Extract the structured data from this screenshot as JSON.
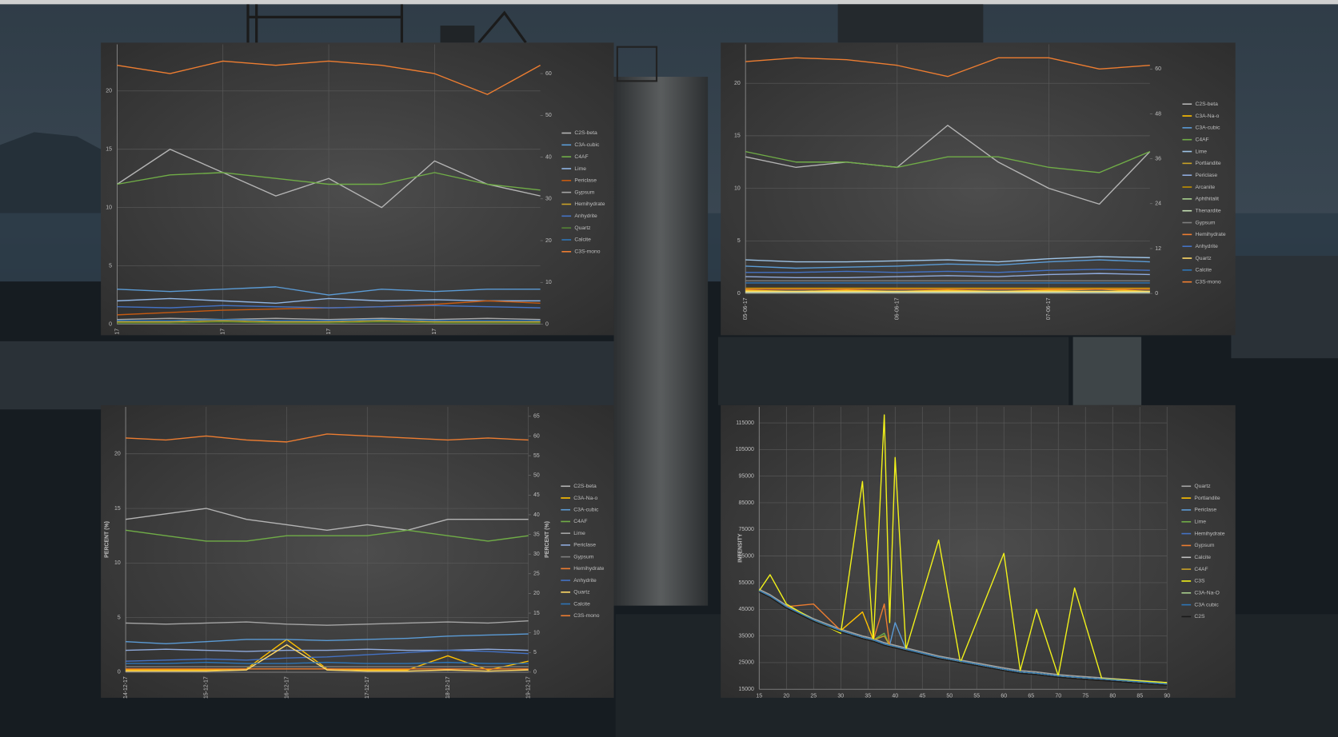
{
  "chart_data": [
    {
      "type": "line",
      "categories": [
        "17",
        null,
        "17",
        null,
        "17",
        null,
        "17",
        null,
        null
      ],
      "ylim": [
        0,
        24
      ],
      "yticks": [
        0,
        5,
        10,
        15,
        20
      ],
      "y2lim": [
        0,
        67
      ],
      "y2ticks": [
        0,
        10,
        20,
        30,
        40,
        50,
        60
      ],
      "grid": true,
      "series": [
        {
          "name": "C2S-beta",
          "color": "#b4b4b4",
          "values": [
            12,
            15,
            13,
            11,
            12.5,
            10,
            14,
            12,
            11
          ]
        },
        {
          "name": "C3A-cubic",
          "color": "#5b9bd5",
          "values": [
            3,
            2.8,
            3,
            3.2,
            2.5,
            3,
            2.8,
            3,
            3
          ]
        },
        {
          "name": "C4AF",
          "color": "#70ad47",
          "values": [
            12,
            12.8,
            13,
            12.5,
            12,
            12,
            13,
            12,
            11.5
          ]
        },
        {
          "name": "Lime",
          "color": "#8fb4e3",
          "values": [
            2,
            2.2,
            2,
            1.8,
            2.2,
            2,
            2.1,
            2,
            2
          ]
        },
        {
          "name": "Periclase",
          "color": "#c55a11",
          "values": [
            0.8,
            1,
            1.2,
            1.3,
            1.4,
            1.5,
            1.7,
            2,
            1.8
          ]
        },
        {
          "name": "Gypsum",
          "color": "#a5a5a5",
          "values": [
            0.4,
            0.5,
            0.4,
            0.5,
            0.4,
            0.5,
            0.4,
            0.5,
            0.4
          ]
        },
        {
          "name": "Hemihydrate",
          "color": "#c9a227",
          "values": [
            0.2,
            0.2,
            0.3,
            0.2,
            0.2,
            0.3,
            0.2,
            0.2,
            0.2
          ]
        },
        {
          "name": "Anhydrite",
          "color": "#4472c4",
          "values": [
            1.5,
            1.4,
            1.6,
            1.5,
            1.4,
            1.5,
            1.6,
            1.5,
            1.4
          ]
        },
        {
          "name": "Quartz",
          "color": "#548235",
          "values": [
            0.1,
            0.1,
            0.2,
            0.1,
            0.1,
            0.2,
            0.1,
            0.1,
            0.1
          ]
        },
        {
          "name": "Calcite",
          "color": "#2e75b6",
          "values": [
            0.3,
            0.3,
            0.4,
            0.3,
            0.3,
            0.4,
            0.3,
            0.3,
            0.3
          ]
        },
        {
          "name": "C3S-mono",
          "color": "#ed7d31",
          "axis": "y2",
          "values": [
            62,
            60,
            63,
            62,
            63,
            62,
            60,
            55,
            62
          ]
        }
      ]
    },
    {
      "type": "line",
      "categories": [
        "05-06-17",
        null,
        null,
        "06-06-17",
        null,
        null,
        "07-06-17",
        null,
        null
      ],
      "ylim": [
        0,
        23.7
      ],
      "yticks": [
        0,
        5,
        10,
        15,
        20
      ],
      "y2lim": [
        0,
        66.6
      ],
      "y2ticks": [
        0,
        12,
        24,
        36,
        48,
        60
      ],
      "grid": true,
      "series": [
        {
          "name": "C2S-beta",
          "color": "#b4b4b4",
          "values": [
            13,
            12,
            12.5,
            12,
            16,
            12.5,
            10,
            8.5,
            13.5
          ]
        },
        {
          "name": "C3A-Na-o",
          "color": "#ffc000",
          "values": [
            0.3,
            0.2,
            0.3,
            0.2,
            0.3,
            0.2,
            0.3,
            0.4,
            0.2
          ]
        },
        {
          "name": "C3A-cubic",
          "color": "#5b9bd5",
          "values": [
            2.6,
            2.4,
            2.5,
            2.6,
            2.8,
            2.7,
            3,
            3.2,
            3
          ]
        },
        {
          "name": "C4AF",
          "color": "#70ad47",
          "values": [
            13.5,
            12.5,
            12.5,
            12,
            13,
            13,
            12,
            11.5,
            13.5
          ]
        },
        {
          "name": "Lime",
          "color": "#9dc3e6",
          "values": [
            3.2,
            3,
            3,
            3.1,
            3.2,
            3,
            3.3,
            3.5,
            3.4
          ]
        },
        {
          "name": "Portlandite",
          "color": "#c9a227",
          "values": [
            0.1,
            0.1,
            0.1,
            0.1,
            0.1,
            0.1,
            0.1,
            0.1,
            0.1
          ]
        },
        {
          "name": "Periclase",
          "color": "#8faadc",
          "values": [
            1.6,
            1.5,
            1.5,
            1.6,
            1.7,
            1.6,
            1.8,
            1.9,
            1.8
          ]
        },
        {
          "name": "Arcanite",
          "color": "#bf9000",
          "values": [
            0.5,
            0.5,
            0.5,
            0.5,
            0.5,
            0.5,
            0.5,
            0.5,
            0.5
          ]
        },
        {
          "name": "Aphthitalit",
          "color": "#a9d18e",
          "values": [
            0.2,
            0.2,
            0.2,
            0.2,
            0.2,
            0.2,
            0.2,
            0.2,
            0.2
          ]
        },
        {
          "name": "Thenardite",
          "color": "#c5e0b4",
          "values": [
            0.1,
            0.1,
            0.1,
            0.1,
            0.1,
            0.1,
            0.1,
            0.1,
            0.1
          ]
        },
        {
          "name": "Gypsum",
          "color": "#7f7f7f",
          "values": [
            1.2,
            1.2,
            1.2,
            1.2,
            1.2,
            1.2,
            1.2,
            1.2,
            1.2
          ]
        },
        {
          "name": "Hemihydrate",
          "color": "#ed7d31",
          "values": [
            0.4,
            0.4,
            0.4,
            0.4,
            0.4,
            0.4,
            0.4,
            0.4,
            0.4
          ]
        },
        {
          "name": "Anhydrite",
          "color": "#4472c4",
          "values": [
            2,
            2,
            2.1,
            2,
            2.1,
            2,
            2.2,
            2.3,
            2.2
          ]
        },
        {
          "name": "Quartz",
          "color": "#ffd966",
          "values": [
            0.2,
            0.2,
            0.2,
            0.2,
            0.2,
            0.2,
            0.2,
            0.2,
            0.2
          ]
        },
        {
          "name": "Calcite",
          "color": "#2e75b6",
          "values": [
            1,
            1,
            1,
            1,
            1,
            1,
            1,
            1,
            1
          ]
        },
        {
          "name": "C3S-mono",
          "color": "#ed7d31",
          "axis": "y2",
          "values": [
            62,
            63,
            62.5,
            61,
            58,
            63,
            63,
            60,
            61
          ]
        }
      ]
    },
    {
      "type": "line",
      "categories": [
        "14-12-17",
        null,
        "15-12-17",
        null,
        "16-12-17",
        null,
        "17-12-17",
        null,
        "18-12-17",
        null,
        "19-12-17"
      ],
      "ylabel": "PERCENT (%)",
      "y2label": "PERCENT (%)",
      "ylim": [
        0,
        24.3
      ],
      "yticks": [
        0,
        5,
        10,
        15,
        20
      ],
      "y2lim": [
        0,
        67.4
      ],
      "y2ticks": [
        0,
        5,
        10,
        15,
        20,
        25,
        30,
        35,
        40,
        45,
        50,
        55,
        60,
        65
      ],
      "grid": true,
      "series": [
        {
          "name": "C2S-beta",
          "color": "#b4b4b4",
          "values": [
            14,
            14.5,
            15,
            14,
            13.5,
            13,
            13.5,
            13,
            14,
            14,
            14
          ]
        },
        {
          "name": "C3A-Na-o",
          "color": "#ffc000",
          "values": [
            0.2,
            0.2,
            0.2,
            0.3,
            3,
            0.3,
            0.2,
            0.2,
            1.5,
            0.2,
            1
          ]
        },
        {
          "name": "C3A-cubic",
          "color": "#5b9bd5",
          "values": [
            2.8,
            2.6,
            2.8,
            3,
            3,
            2.9,
            3,
            3.1,
            3.3,
            3.4,
            3.5
          ]
        },
        {
          "name": "C4AF",
          "color": "#70ad47",
          "values": [
            13,
            12.5,
            12,
            12,
            12.5,
            12.5,
            12.5,
            13,
            12.5,
            12,
            12.5
          ]
        },
        {
          "name": "Lime",
          "color": "#a5a5a5",
          "values": [
            4.5,
            4.4,
            4.5,
            4.6,
            4.4,
            4.3,
            4.4,
            4.5,
            4.6,
            4.5,
            4.7
          ]
        },
        {
          "name": "Periclase",
          "color": "#8faadc",
          "values": [
            2,
            2.1,
            2,
            1.9,
            2,
            2,
            2.1,
            2,
            2,
            2.1,
            2
          ]
        },
        {
          "name": "Gypsum",
          "color": "#7f7f7f",
          "values": [
            0.5,
            0.5,
            0.5,
            0.5,
            0.5,
            0.5,
            0.5,
            0.5,
            0.5,
            0.5,
            0.5
          ]
        },
        {
          "name": "Hemihydrate",
          "color": "#ed7d31",
          "values": [
            0.3,
            0.3,
            0.3,
            0.3,
            0.3,
            0.3,
            0.3,
            0.3,
            0.3,
            0.3,
            0.3
          ]
        },
        {
          "name": "Anhydrite",
          "color": "#4472c4",
          "values": [
            1,
            1.1,
            1.2,
            1.1,
            1.3,
            1.4,
            1.6,
            1.8,
            2,
            1.9,
            1.7
          ]
        },
        {
          "name": "Quartz",
          "color": "#ffd966",
          "values": [
            0.1,
            0.1,
            0.1,
            0.2,
            2.5,
            0.2,
            0.1,
            0.1,
            0.2,
            0.1,
            0.2
          ]
        },
        {
          "name": "Calcite",
          "color": "#2e75b6",
          "values": [
            0.8,
            0.8,
            0.9,
            0.8,
            0.8,
            0.9,
            0.8,
            0.8,
            0.9,
            0.8,
            0.8
          ]
        },
        {
          "name": "C3S-mono",
          "color": "#ed7d31",
          "axis": "y2",
          "values": [
            59.5,
            59,
            60,
            59,
            58.5,
            60.5,
            60,
            59.5,
            59,
            59.5,
            59
          ]
        }
      ]
    },
    {
      "type": "line",
      "ylabel": "INTENSITY",
      "x": [
        15,
        17,
        20,
        25,
        30,
        34,
        36,
        38,
        39,
        40,
        42,
        48,
        52,
        60,
        63,
        66,
        70,
        73,
        78,
        90
      ],
      "xlim": [
        15,
        90
      ],
      "xticks": [
        15,
        20,
        25,
        30,
        35,
        40,
        45,
        50,
        55,
        60,
        65,
        70,
        75,
        80,
        85,
        90
      ],
      "ylim": [
        15000,
        121000
      ],
      "yticks": [
        15000,
        25000,
        35000,
        45000,
        55000,
        65000,
        75000,
        85000,
        95000,
        105000,
        115000
      ],
      "grid": true,
      "series": [
        {
          "name": "Quartz",
          "color": "#a5a5a5",
          "values": [
            52500,
            50500,
            46500,
            41500,
            37500,
            35000,
            34000,
            32500,
            32000,
            31500,
            30500,
            27500,
            26000,
            23000,
            22000,
            21500,
            20500,
            20000,
            19300,
            17500
          ]
        },
        {
          "name": "Portlandite",
          "color": "#ffc000",
          "values": [
            52000,
            50000,
            46000,
            41000,
            37000,
            44000,
            33500,
            32000,
            31500,
            31000,
            30000,
            27000,
            25500,
            22500,
            21500,
            21000,
            20000,
            19500,
            18800,
            17000
          ]
        },
        {
          "name": "Periclase",
          "color": "#5b9bd5",
          "values": [
            52000,
            50000,
            46000,
            41000,
            37000,
            34500,
            33500,
            32000,
            31500,
            40000,
            30000,
            27000,
            25500,
            22500,
            21500,
            21000,
            20000,
            19500,
            18800,
            17000
          ]
        },
        {
          "name": "Lime",
          "color": "#70ad47",
          "values": [
            52000,
            50000,
            46000,
            41000,
            37000,
            34500,
            33500,
            36000,
            31500,
            31000,
            30000,
            27000,
            25500,
            22500,
            21500,
            21000,
            20000,
            19500,
            18800,
            17000
          ]
        },
        {
          "name": "Hemihydrate",
          "color": "#4472c4",
          "values": [
            52000,
            50000,
            46000,
            41000,
            37000,
            34500,
            33500,
            32000,
            31500,
            31000,
            30000,
            27000,
            25500,
            22500,
            21500,
            21000,
            20000,
            19500,
            18800,
            17000
          ]
        },
        {
          "name": "Gypsum",
          "color": "#ed7d31",
          "values": [
            52000,
            50000,
            46000,
            47000,
            37000,
            34500,
            33500,
            47000,
            31500,
            31000,
            30000,
            27000,
            25500,
            22500,
            21500,
            21000,
            20000,
            19500,
            18800,
            17000
          ]
        },
        {
          "name": "Calcite",
          "color": "#bfbfbf",
          "values": [
            52000,
            50000,
            46000,
            41000,
            37000,
            34500,
            33500,
            32000,
            31500,
            31000,
            30000,
            27000,
            25500,
            22500,
            21500,
            21000,
            20000,
            19500,
            18800,
            17000
          ]
        },
        {
          "name": "C4AF",
          "color": "#c9a227",
          "values": [
            52000,
            50000,
            46000,
            41000,
            37000,
            34500,
            33500,
            35000,
            31500,
            31000,
            30000,
            27000,
            25500,
            22500,
            21500,
            21000,
            20000,
            19500,
            18800,
            17000
          ]
        },
        {
          "name": "C3S",
          "color": "#f2f21a",
          "values": [
            52000,
            58000,
            47000,
            41000,
            36000,
            93000,
            33000,
            118000,
            40000,
            102000,
            30000,
            71000,
            25000,
            66000,
            22000,
            45000,
            20000,
            53000,
            19000,
            17500
          ]
        },
        {
          "name": "C3A-Na-O",
          "color": "#a9d18e",
          "values": [
            52000,
            50000,
            46000,
            41000,
            37000,
            34500,
            33500,
            32000,
            31500,
            31000,
            30000,
            27000,
            25500,
            22500,
            21500,
            21000,
            20000,
            19500,
            18800,
            17000
          ]
        },
        {
          "name": "C3A cubic",
          "color": "#2e75b6",
          "values": [
            52000,
            50000,
            46000,
            41000,
            37000,
            34500,
            33500,
            32000,
            31500,
            31000,
            30000,
            27000,
            25500,
            22500,
            21500,
            21000,
            20000,
            19500,
            18800,
            17000
          ]
        },
        {
          "name": "C2S",
          "color": "#1a1a1a",
          "values": [
            51500,
            49500,
            45500,
            40500,
            36500,
            34000,
            33000,
            31500,
            31000,
            30500,
            29500,
            26500,
            25000,
            22000,
            21000,
            20500,
            19500,
            19000,
            18300,
            16500
          ]
        }
      ]
    }
  ]
}
